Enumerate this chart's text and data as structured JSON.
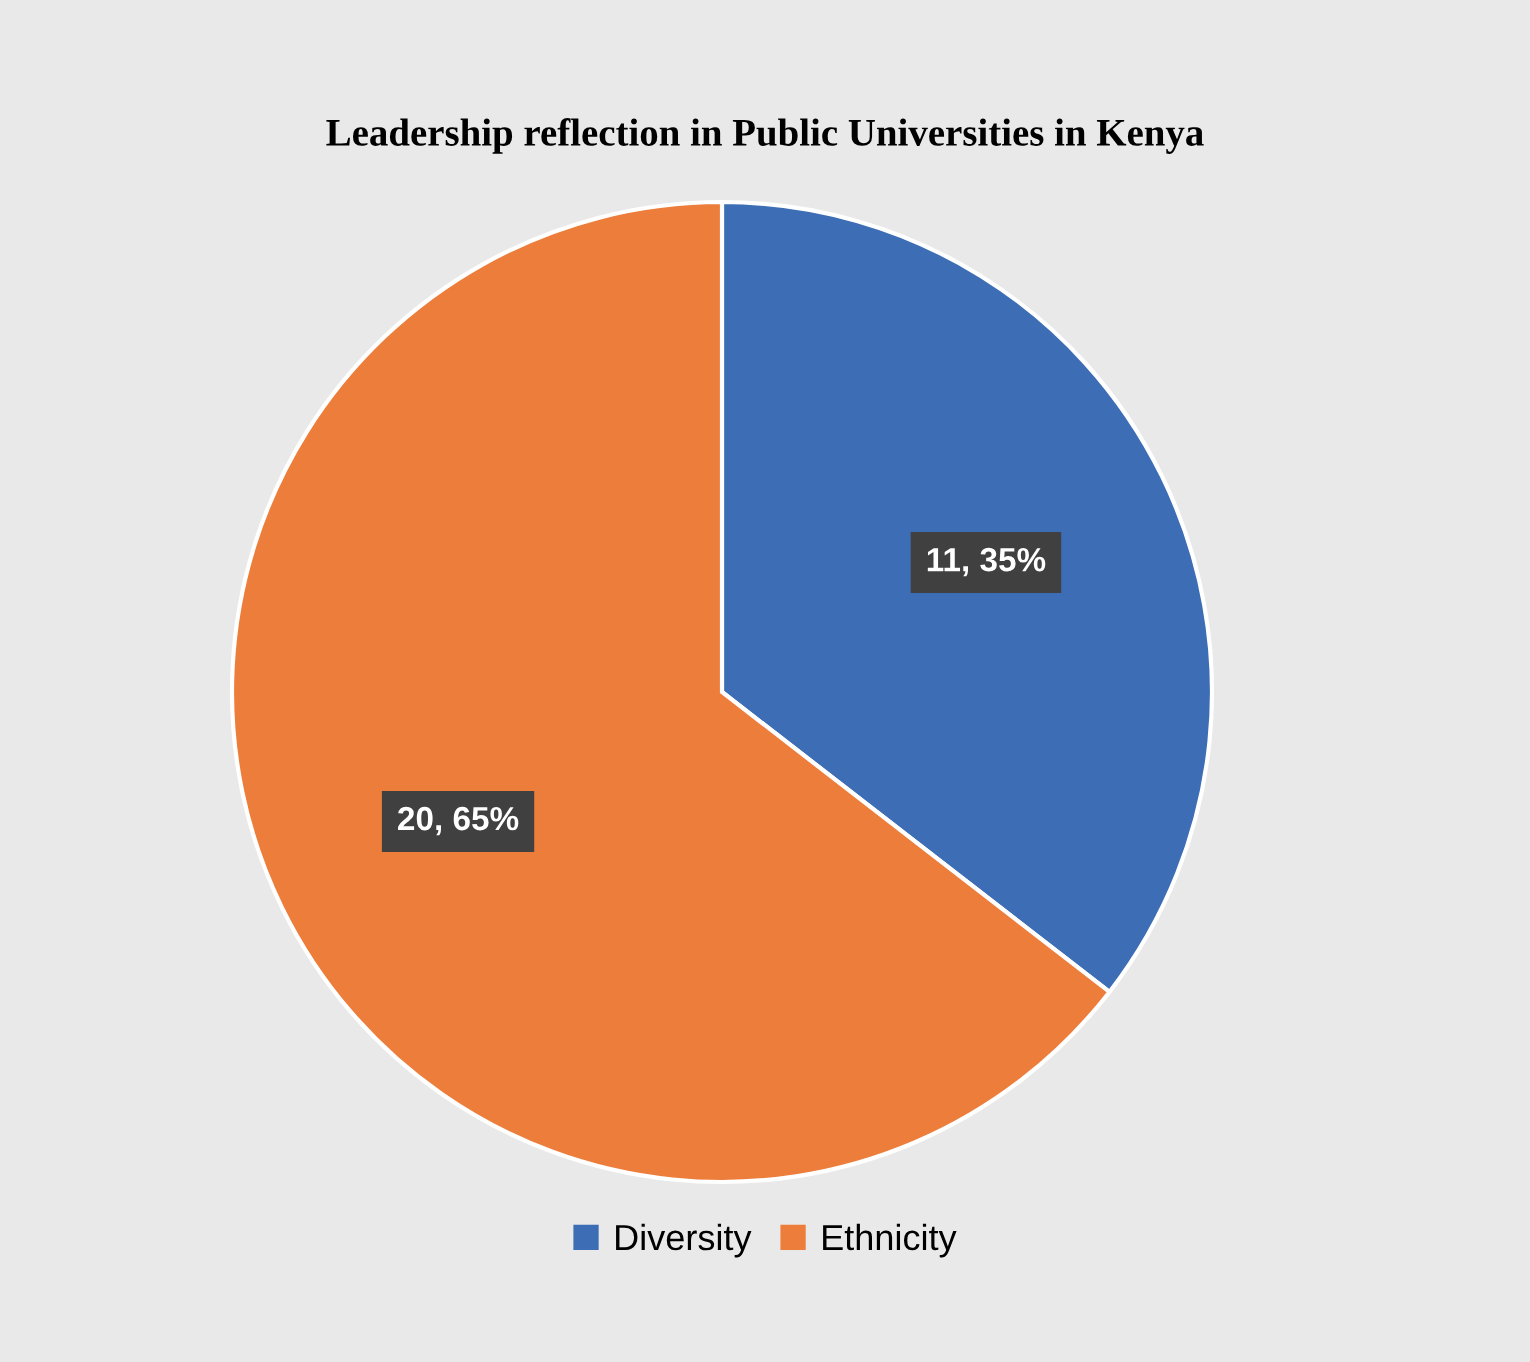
{
  "chart_data": {
    "type": "pie",
    "title": "Leadership reflection in Public Universities in Kenya",
    "categories": [
      "Diversity",
      "Ethnicity"
    ],
    "values": [
      11,
      20
    ],
    "colors": [
      "#3c6db5",
      "#ed7d3a"
    ],
    "value_labels": [
      "11, 35%",
      "20, 65%"
    ],
    "legend": "bottom"
  }
}
